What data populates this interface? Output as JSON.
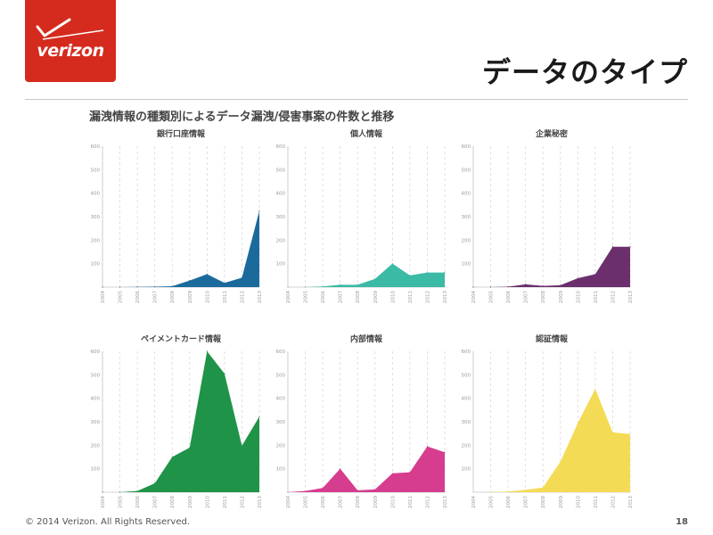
{
  "brand": {
    "logo_text": "verizon",
    "color": "#d52b1e"
  },
  "slide": {
    "title": "データのタイプ",
    "subtitle": "漏洩情報の種類別によるデータ漏洩/侵害事案の件数と推移",
    "page_number": "18"
  },
  "footer": {
    "copyright": "© 2014 Verizon. All Rights Reserved."
  },
  "chart_data": [
    {
      "type": "area",
      "title": "銀行口座情報",
      "color": "#1b6a9c",
      "x": [
        "2004",
        "2005",
        "2006",
        "2007",
        "2008",
        "2009",
        "2010",
        "2011",
        "2012",
        "2013"
      ],
      "values": [
        0,
        0,
        1,
        2,
        4,
        28,
        55,
        18,
        40,
        325
      ],
      "ylim": [
        0,
        600
      ],
      "yticks": [
        "600",
        "500",
        "400",
        "300",
        "200",
        "100"
      ],
      "grid": "vertical-dashed"
    },
    {
      "type": "area",
      "title": "個人情報",
      "color": "#3bbaa6",
      "x": [
        "2004",
        "2005",
        "2006",
        "2007",
        "2008",
        "2009",
        "2010",
        "2011",
        "2012",
        "2013"
      ],
      "values": [
        0,
        0,
        3,
        10,
        10,
        35,
        100,
        50,
        62,
        62
      ],
      "ylim": [
        0,
        600
      ],
      "yticks": [
        "600",
        "500",
        "400",
        "300",
        "200",
        "100"
      ],
      "grid": "vertical-dashed"
    },
    {
      "type": "area",
      "title": "企業秘密",
      "color": "#6b2f6e",
      "x": [
        "2004",
        "2005",
        "2006",
        "2007",
        "2008",
        "2009",
        "2010",
        "2011",
        "2012",
        "2013"
      ],
      "values": [
        0,
        0,
        2,
        12,
        5,
        8,
        38,
        55,
        172,
        172
      ],
      "ylim": [
        0,
        600
      ],
      "yticks": [
        "600",
        "500",
        "400",
        "300",
        "200",
        "100"
      ],
      "grid": "vertical-dashed"
    },
    {
      "type": "area",
      "title": "ペイメントカード情報",
      "color": "#1f9448",
      "x": [
        "2004",
        "2005",
        "2006",
        "2007",
        "2008",
        "2009",
        "2010",
        "2011",
        "2012",
        "2013"
      ],
      "values": [
        0,
        0,
        5,
        38,
        150,
        190,
        600,
        505,
        198,
        322
      ],
      "ylim": [
        0,
        600
      ],
      "yticks": [
        "600",
        "500",
        "400",
        "300",
        "200",
        "100"
      ],
      "grid": "vertical-dashed"
    },
    {
      "type": "area",
      "title": "内部情報",
      "color": "#d63d8e",
      "x": [
        "2004",
        "2005",
        "2006",
        "2007",
        "2008",
        "2009",
        "2010",
        "2011",
        "2012",
        "2013"
      ],
      "values": [
        0,
        5,
        18,
        100,
        8,
        12,
        80,
        85,
        195,
        170
      ],
      "ylim": [
        0,
        600
      ],
      "yticks": [
        "600",
        "500",
        "400",
        "300",
        "200",
        "100"
      ],
      "grid": "vertical-dashed"
    },
    {
      "type": "area",
      "title": "認証情報",
      "color": "#f4db55",
      "x": [
        "2004",
        "2005",
        "2006",
        "2007",
        "2008",
        "2009",
        "2010",
        "2011",
        "2012",
        "2013"
      ],
      "values": [
        0,
        0,
        3,
        10,
        20,
        130,
        295,
        440,
        255,
        248
      ],
      "ylim": [
        0,
        600
      ],
      "yticks": [
        "600",
        "500",
        "400",
        "300",
        "200",
        "100"
      ],
      "grid": "vertical-dashed"
    }
  ]
}
